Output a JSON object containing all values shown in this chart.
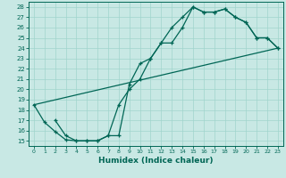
{
  "bg_color": "#c8e8e4",
  "line_color": "#006655",
  "grid_color": "#a0d4cc",
  "xlabel": "Humidex (Indice chaleur)",
  "xlim": [
    -0.5,
    23.5
  ],
  "ylim": [
    14.5,
    28.5
  ],
  "xticks": [
    0,
    1,
    2,
    3,
    4,
    5,
    6,
    7,
    8,
    9,
    10,
    11,
    12,
    13,
    14,
    15,
    16,
    17,
    18,
    19,
    20,
    21,
    22,
    23
  ],
  "yticks": [
    15,
    16,
    17,
    18,
    19,
    20,
    21,
    22,
    23,
    24,
    25,
    26,
    27,
    28
  ],
  "curve1_x": [
    0,
    1,
    2,
    3,
    4,
    5,
    6,
    7,
    8,
    9,
    10,
    11,
    12,
    13,
    14,
    15,
    16,
    17,
    18,
    19,
    20,
    21,
    22,
    23
  ],
  "curve1_y": [
    18.5,
    16.8,
    15.9,
    15.1,
    15.0,
    15.0,
    15.0,
    15.5,
    18.5,
    20.0,
    21.0,
    23.0,
    24.5,
    24.5,
    26.0,
    28.0,
    27.5,
    27.5,
    27.8,
    27.0,
    26.5,
    25.0,
    25.0,
    24.0
  ],
  "curve2_x": [
    2,
    3,
    4,
    5,
    6,
    7,
    8,
    9,
    10,
    11,
    12,
    13,
    14,
    15,
    16,
    17,
    18,
    19,
    20,
    21,
    22,
    23
  ],
  "curve2_y": [
    17.0,
    15.5,
    15.0,
    15.0,
    15.0,
    15.5,
    15.5,
    20.5,
    22.5,
    23.0,
    24.5,
    26.0,
    27.0,
    28.0,
    27.5,
    27.5,
    27.8,
    27.0,
    26.5,
    25.0,
    25.0,
    24.0
  ],
  "line3_x": [
    0,
    23
  ],
  "line3_y": [
    18.5,
    24.0
  ],
  "fig_width": 3.2,
  "fig_height": 2.0,
  "dpi": 100
}
